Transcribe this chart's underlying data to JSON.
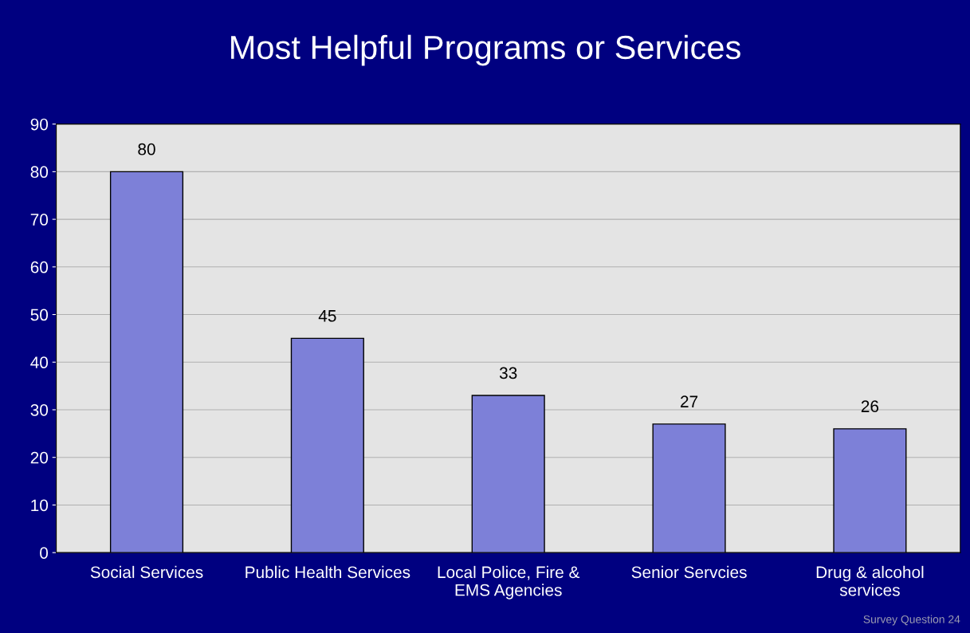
{
  "chart_data": {
    "type": "bar",
    "title": "Most Helpful Programs or Services",
    "categories": [
      "Social Services",
      "Public Health Services",
      "Local Police, Fire &\nEMS Agencies",
      "Senior Servcies",
      "Drug & alcohol\nservices"
    ],
    "values": [
      80,
      45,
      33,
      27,
      26
    ],
    "color": "#7d80d8",
    "ylim": [
      0,
      90
    ],
    "yticks": [
      0,
      10,
      20,
      30,
      40,
      50,
      60,
      70,
      80,
      90
    ],
    "grid": "y",
    "data_labels": true,
    "annotations": [
      "Survey Question 24"
    ]
  }
}
